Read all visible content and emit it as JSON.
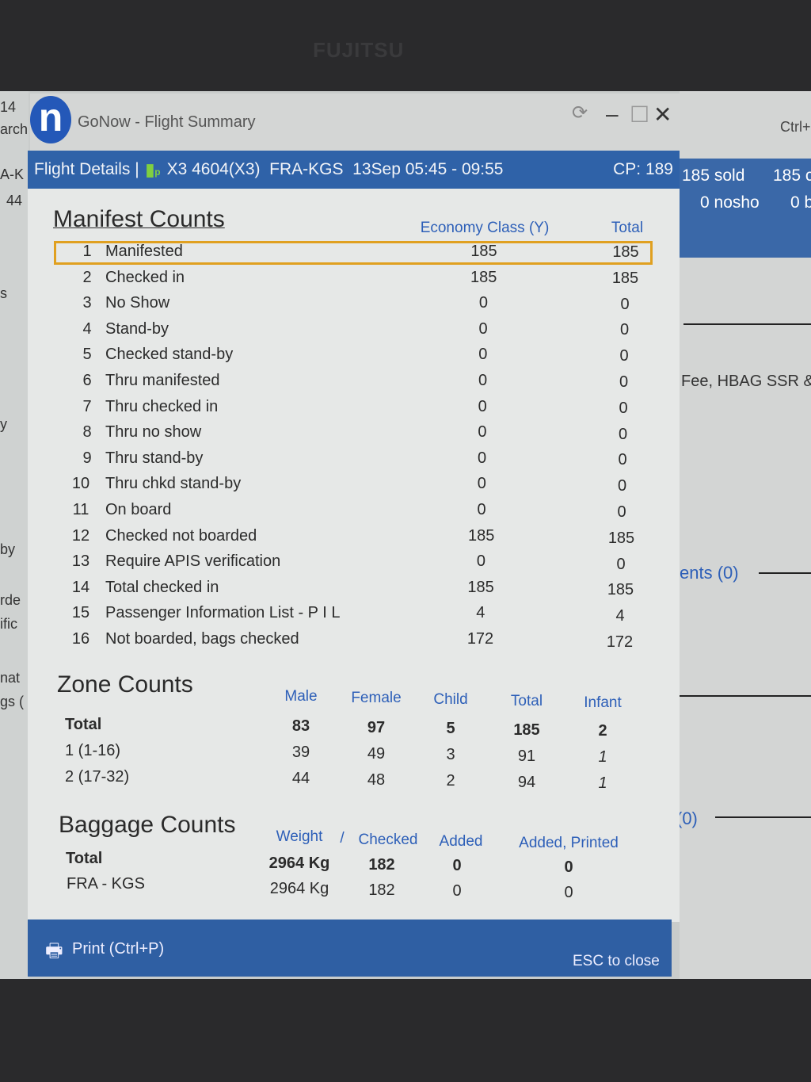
{
  "bezel": {
    "brand": "FUJITSU"
  },
  "background_left": [
    "14",
    "arch",
    "A-K",
    "44",
    "s",
    "y",
    "by",
    "rde",
    "ific",
    "nat",
    "gs ("
  ],
  "background_right": {
    "shortcut": "Ctrl+",
    "sold": "185 sold",
    "col2": "185 c",
    "nosho": "0 nosho",
    "col4": "0 b",
    "fee_text": "Fee, HBAG SSR &",
    "ents": "ents (0)",
    "zero": "(0)"
  },
  "window": {
    "title": "GoNow - Flight Summary"
  },
  "header": {
    "label": "Flight Details |",
    "flight": "X3 4604(X3)  FRA-KGS  13Sep 05:45 - 09:55",
    "cp": "CP: 189"
  },
  "manifest": {
    "title": "Manifest Counts",
    "columns": [
      "Economy Class (Y)",
      "Total"
    ],
    "rows": [
      {
        "n": "1",
        "label": "Manifested",
        "y": "185",
        "total": "185"
      },
      {
        "n": "2",
        "label": "Checked in",
        "y": "185",
        "total": "185"
      },
      {
        "n": "3",
        "label": "No Show",
        "y": "0",
        "total": "0"
      },
      {
        "n": "4",
        "label": "Stand-by",
        "y": "0",
        "total": "0"
      },
      {
        "n": "5",
        "label": "Checked stand-by",
        "y": "0",
        "total": "0"
      },
      {
        "n": "6",
        "label": "Thru manifested",
        "y": "0",
        "total": "0"
      },
      {
        "n": "7",
        "label": "Thru checked in",
        "y": "0",
        "total": "0"
      },
      {
        "n": "8",
        "label": "Thru no show",
        "y": "0",
        "total": "0"
      },
      {
        "n": "9",
        "label": "Thru stand-by",
        "y": "0",
        "total": "0"
      },
      {
        "n": "10",
        "label": "Thru chkd stand-by",
        "y": "0",
        "total": "0"
      },
      {
        "n": "11",
        "label": "On board",
        "y": "0",
        "total": "0"
      },
      {
        "n": "12",
        "label": "Checked not boarded",
        "y": "185",
        "total": "185"
      },
      {
        "n": "13",
        "label": "Require APIS verification",
        "y": "0",
        "total": "0"
      },
      {
        "n": "14",
        "label": "Total checked in",
        "y": "185",
        "total": "185"
      },
      {
        "n": "15",
        "label": "Passenger Information List - P I L",
        "y": "4",
        "total": "4"
      },
      {
        "n": "16",
        "label": "Not boarded, bags checked",
        "y": "172",
        "total": "172"
      }
    ]
  },
  "zone": {
    "title": "Zone Counts",
    "columns": [
      "Male",
      "Female",
      "Child",
      "Total",
      "Infant"
    ],
    "rows": [
      {
        "label": "Total",
        "values": [
          "83",
          "97",
          "5",
          "185",
          "2"
        ]
      },
      {
        "label": "1 (1-16)",
        "values": [
          "39",
          "49",
          "3",
          "91",
          "1"
        ]
      },
      {
        "label": "2 (17-32)",
        "values": [
          "44",
          "48",
          "2",
          "94",
          "1"
        ]
      }
    ]
  },
  "baggage": {
    "title": "Baggage Counts",
    "columns": [
      "Weight",
      "/",
      "Checked",
      "Added",
      "Added, Printed"
    ],
    "rows": [
      {
        "label": "Total",
        "values": [
          "2964 Kg",
          "182",
          "0",
          "0"
        ]
      },
      {
        "label": "FRA - KGS",
        "values": [
          "2964 Kg",
          "182",
          "0",
          "0"
        ]
      }
    ]
  },
  "footer": {
    "print": "Print (Ctrl+P)",
    "close": "ESC to close"
  },
  "colors": {
    "header_blue": "#2f62a8",
    "column_header": "#2d5fb8",
    "highlight": "#e0a020"
  }
}
